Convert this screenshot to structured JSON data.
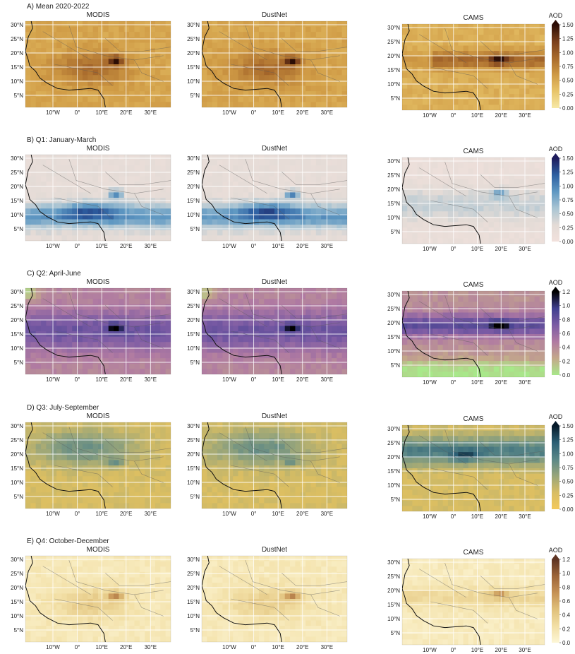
{
  "figure": {
    "lat_ticks": [
      "30°N",
      "25°N",
      "20°N",
      "15°N",
      "10°N",
      "5°N"
    ],
    "lon_ticks": [
      "10°W",
      "0°",
      "10°E",
      "20°E",
      "30°E"
    ],
    "rows": [
      {
        "title": "A) Mean 2020-2022",
        "colormap": "brown",
        "colorbar": {
          "label": "AOD",
          "ticks": [
            "1.50",
            "1.25",
            "1.00",
            "0.75",
            "0.50",
            "0.25",
            "0.00"
          ]
        },
        "panels": [
          "MODIS",
          "DustNet",
          "CAMS"
        ]
      },
      {
        "title": "B) Q1: January-March",
        "colormap": "blue",
        "colorbar": {
          "label": "AOD",
          "ticks": [
            "1.50",
            "1.25",
            "1.00",
            "0.75",
            "0.50",
            "0.25",
            "0.00"
          ]
        },
        "panels": [
          "MODIS",
          "DustNet",
          "CAMS"
        ]
      },
      {
        "title": "C) Q2: April-June",
        "colormap": "purple-green",
        "colorbar": {
          "label": "AOD",
          "ticks": [
            "1.2",
            "1.0",
            "0.8",
            "0.6",
            "0.4",
            "0.2",
            "0.0"
          ]
        },
        "panels": [
          "MODIS",
          "DustNet",
          "CAMS"
        ]
      },
      {
        "title": "D) Q3: July-September",
        "colormap": "teal-yellow",
        "colorbar": {
          "label": "AOD",
          "ticks": [
            "1.50",
            "1.25",
            "1.00",
            "0.75",
            "0.50",
            "0.25",
            "0.00"
          ]
        },
        "panels": [
          "MODIS",
          "DustNet",
          "CAMS"
        ]
      },
      {
        "title": "E) Q4: October-December",
        "colormap": "light-brown",
        "colorbar": {
          "label": "AOD",
          "ticks": [
            "1.2",
            "1.0",
            "0.8",
            "0.6",
            "0.4",
            "0.2",
            "0.0"
          ]
        },
        "panels": [
          "MODIS",
          "DustNet",
          "CAMS"
        ]
      }
    ],
    "colormaps": {
      "brown": [
        "#f6e8a6",
        "#e8c56a",
        "#cf9a45",
        "#a86a2c",
        "#7a3f1c",
        "#2c0d05"
      ],
      "blue": [
        "#f2e1dc",
        "#e3dbd6",
        "#a9c4d3",
        "#5f98c2",
        "#2d5fa1",
        "#1e1b5c"
      ],
      "purple-green": [
        "#a8e88a",
        "#c4a98a",
        "#b07aa2",
        "#7b5ba4",
        "#3f3f8f",
        "#000000"
      ],
      "teal-yellow": [
        "#f3c95c",
        "#d8bd63",
        "#98a57a",
        "#5a8787",
        "#2b5f75",
        "#061a2a"
      ],
      "light-brown": [
        "#fdf6d6",
        "#f2dfa5",
        "#e0c07a",
        "#c59155",
        "#9c6438",
        "#5e3423"
      ]
    },
    "colorbar_top_arrow_colors": [
      "#2c0d05",
      "#1e1b5c",
      "#000000",
      "#061a2a",
      "#5e3423"
    ]
  }
}
